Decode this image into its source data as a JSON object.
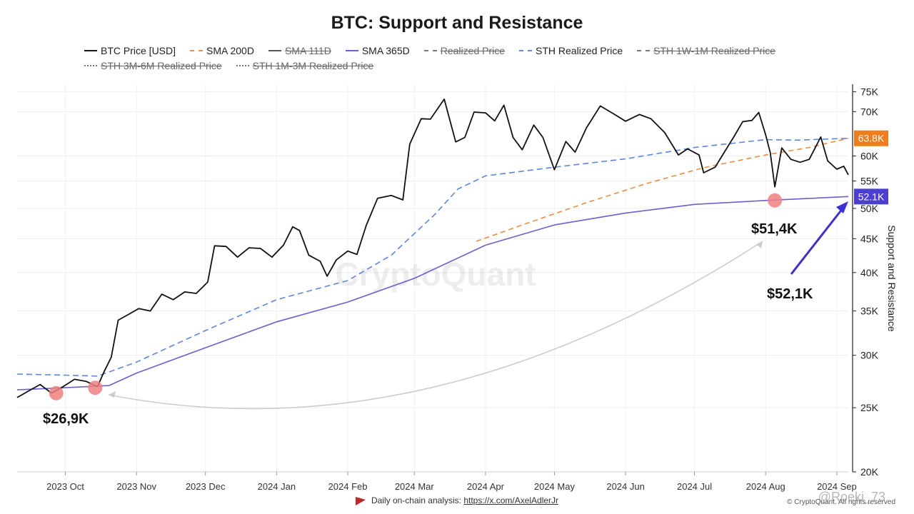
{
  "title": "BTC: Support and Resistance",
  "legend": [
    {
      "label": "BTC Price [USD]",
      "color": "#111111",
      "style": "solid",
      "enabled": true
    },
    {
      "label": "SMA 200D",
      "color": "#f28c3c",
      "style": "dashed",
      "enabled": true
    },
    {
      "label": "SMA 111D",
      "color": "#555555",
      "style": "solid",
      "enabled": false
    },
    {
      "label": "SMA 365D",
      "color": "#6a5fd6",
      "style": "solid",
      "enabled": true
    },
    {
      "label": "Realized Price",
      "color": "#777777",
      "style": "dashdot",
      "enabled": false
    },
    {
      "label": "STH Realized Price",
      "color": "#5b86e5",
      "style": "dashed",
      "enabled": true
    },
    {
      "label": "STH 1W-1M Realized Price",
      "color": "#777777",
      "style": "dashed",
      "enabled": false
    },
    {
      "label": "STH 3M-6M Realized Price",
      "color": "#777777",
      "style": "dotted",
      "enabled": false
    },
    {
      "label": "STH 1M-3M Realized Price",
      "color": "#777777",
      "style": "dotted",
      "enabled": false
    }
  ],
  "chart_data": {
    "type": "line",
    "title": "BTC: Support and Resistance",
    "ylabel": "Support and Resistance",
    "yscale": "log",
    "ylim": [
      20000,
      77000
    ],
    "y_ticks": [
      {
        "value": 75000,
        "label": "75K"
      },
      {
        "value": 70000,
        "label": "70K"
      },
      {
        "value": 60000,
        "label": "60K"
      },
      {
        "value": 55000,
        "label": "55K"
      },
      {
        "value": 50000,
        "label": "50K"
      },
      {
        "value": 45000,
        "label": "45K"
      },
      {
        "value": 40000,
        "label": "40K"
      },
      {
        "value": 35000,
        "label": "35K"
      },
      {
        "value": 30000,
        "label": "30K"
      },
      {
        "value": 25000,
        "label": "25K"
      },
      {
        "value": 20000,
        "label": "20K"
      }
    ],
    "xlim": [
      "2023-09-10",
      "2024-09-06"
    ],
    "x_ticks": [
      {
        "date": "2023-10-01",
        "label": "2023 Oct"
      },
      {
        "date": "2023-11-01",
        "label": "2023 Nov"
      },
      {
        "date": "2023-12-01",
        "label": "2023 Dec"
      },
      {
        "date": "2024-01-01",
        "label": "2024 Jan"
      },
      {
        "date": "2024-02-01",
        "label": "2024 Feb"
      },
      {
        "date": "2024-03-01",
        "label": "2024 Mar"
      },
      {
        "date": "2024-04-01",
        "label": "2024 Apr"
      },
      {
        "date": "2024-05-01",
        "label": "2024 May"
      },
      {
        "date": "2024-06-01",
        "label": "2024 Jun"
      },
      {
        "date": "2024-07-01",
        "label": "2024 Jul"
      },
      {
        "date": "2024-08-01",
        "label": "2024 Aug"
      },
      {
        "date": "2024-09-01",
        "label": "2024 Sep"
      }
    ],
    "series": [
      {
        "name": "BTC Price [USD]",
        "color": "#111111",
        "dash": "",
        "points": [
          [
            "2023-09-10",
            25900
          ],
          [
            "2023-09-15",
            26500
          ],
          [
            "2023-09-20",
            27100
          ],
          [
            "2023-09-25",
            26300
          ],
          [
            "2023-09-30",
            26900
          ],
          [
            "2023-10-05",
            27600
          ],
          [
            "2023-10-10",
            27400
          ],
          [
            "2023-10-15",
            26900
          ],
          [
            "2023-10-18",
            28400
          ],
          [
            "2023-10-21",
            29800
          ],
          [
            "2023-10-24",
            33900
          ],
          [
            "2023-10-28",
            34500
          ],
          [
            "2023-11-02",
            35300
          ],
          [
            "2023-11-07",
            35000
          ],
          [
            "2023-11-12",
            37100
          ],
          [
            "2023-11-17",
            36400
          ],
          [
            "2023-11-22",
            37400
          ],
          [
            "2023-11-27",
            37200
          ],
          [
            "2023-12-02",
            38700
          ],
          [
            "2023-12-05",
            43900
          ],
          [
            "2023-12-10",
            43800
          ],
          [
            "2023-12-15",
            42200
          ],
          [
            "2023-12-20",
            43600
          ],
          [
            "2023-12-25",
            43500
          ],
          [
            "2023-12-30",
            42200
          ],
          [
            "2024-01-04",
            44000
          ],
          [
            "2024-01-08",
            46900
          ],
          [
            "2024-01-11",
            46300
          ],
          [
            "2024-01-15",
            42500
          ],
          [
            "2024-01-20",
            41600
          ],
          [
            "2024-01-23",
            39500
          ],
          [
            "2024-01-27",
            41800
          ],
          [
            "2024-02-01",
            43100
          ],
          [
            "2024-02-05",
            42600
          ],
          [
            "2024-02-09",
            47100
          ],
          [
            "2024-02-14",
            51800
          ],
          [
            "2024-02-20",
            52300
          ],
          [
            "2024-02-25",
            51500
          ],
          [
            "2024-02-28",
            62500
          ],
          [
            "2024-03-04",
            68300
          ],
          [
            "2024-03-08",
            68200
          ],
          [
            "2024-03-14",
            73100
          ],
          [
            "2024-03-19",
            63000
          ],
          [
            "2024-03-23",
            64000
          ],
          [
            "2024-03-27",
            69900
          ],
          [
            "2024-04-01",
            69700
          ],
          [
            "2024-04-05",
            67800
          ],
          [
            "2024-04-09",
            71600
          ],
          [
            "2024-04-13",
            64000
          ],
          [
            "2024-04-17",
            61300
          ],
          [
            "2024-04-22",
            66800
          ],
          [
            "2024-04-26",
            64000
          ],
          [
            "2024-05-01",
            57200
          ],
          [
            "2024-05-06",
            63100
          ],
          [
            "2024-05-10",
            60800
          ],
          [
            "2024-05-15",
            66200
          ],
          [
            "2024-05-21",
            71400
          ],
          [
            "2024-05-27",
            69400
          ],
          [
            "2024-06-01",
            67700
          ],
          [
            "2024-06-07",
            69300
          ],
          [
            "2024-06-12",
            68300
          ],
          [
            "2024-06-18",
            65100
          ],
          [
            "2024-06-24",
            60200
          ],
          [
            "2024-06-28",
            61500
          ],
          [
            "2024-07-03",
            60200
          ],
          [
            "2024-07-05",
            56600
          ],
          [
            "2024-07-10",
            57700
          ],
          [
            "2024-07-14",
            60800
          ],
          [
            "2024-07-18",
            64000
          ],
          [
            "2024-07-22",
            67600
          ],
          [
            "2024-07-26",
            67900
          ],
          [
            "2024-07-29",
            69800
          ],
          [
            "2024-08-01",
            64600
          ],
          [
            "2024-08-03",
            60700
          ],
          [
            "2024-08-05",
            53900
          ],
          [
            "2024-08-08",
            61700
          ],
          [
            "2024-08-12",
            59300
          ],
          [
            "2024-08-16",
            58700
          ],
          [
            "2024-08-20",
            59300
          ],
          [
            "2024-08-25",
            64100
          ],
          [
            "2024-08-28",
            59000
          ],
          [
            "2024-09-01",
            57300
          ],
          [
            "2024-09-04",
            57900
          ],
          [
            "2024-09-06",
            56200
          ]
        ]
      },
      {
        "name": "SMA 200D",
        "color": "#f28c3c",
        "dash": "7,5",
        "points": [
          [
            "2024-03-28",
            44600
          ],
          [
            "2024-04-20",
            47600
          ],
          [
            "2024-05-15",
            51000
          ],
          [
            "2024-06-10",
            54500
          ],
          [
            "2024-07-05",
            57600
          ],
          [
            "2024-08-01",
            60200
          ],
          [
            "2024-08-20",
            61800
          ],
          [
            "2024-09-06",
            63800
          ]
        ]
      },
      {
        "name": "SMA 365D",
        "color": "#6a5fd6",
        "dash": "",
        "points": [
          [
            "2023-09-10",
            26600
          ],
          [
            "2023-10-01",
            26800
          ],
          [
            "2023-10-20",
            27000
          ],
          [
            "2023-11-01",
            28200
          ],
          [
            "2023-12-01",
            30800
          ],
          [
            "2024-01-01",
            33700
          ],
          [
            "2024-02-01",
            36100
          ],
          [
            "2024-03-01",
            39200
          ],
          [
            "2024-04-01",
            44000
          ],
          [
            "2024-05-01",
            47200
          ],
          [
            "2024-06-01",
            49200
          ],
          [
            "2024-07-01",
            50700
          ],
          [
            "2024-08-01",
            51400
          ],
          [
            "2024-09-06",
            52100
          ]
        ]
      },
      {
        "name": "STH Realized Price",
        "color": "#5b86e5",
        "dash": "8,5",
        "points": [
          [
            "2023-09-10",
            28100
          ],
          [
            "2023-10-01",
            28000
          ],
          [
            "2023-10-15",
            27900
          ],
          [
            "2023-11-01",
            29300
          ],
          [
            "2023-12-01",
            32700
          ],
          [
            "2024-01-01",
            36400
          ],
          [
            "2024-02-01",
            38900
          ],
          [
            "2024-02-20",
            42500
          ],
          [
            "2024-03-10",
            49000
          ],
          [
            "2024-03-20",
            53500
          ],
          [
            "2024-04-01",
            56000
          ],
          [
            "2024-05-01",
            57700
          ],
          [
            "2024-06-01",
            59400
          ],
          [
            "2024-07-01",
            61800
          ],
          [
            "2024-08-01",
            63500
          ],
          [
            "2024-08-15",
            63400
          ],
          [
            "2024-09-06",
            63800
          ]
        ]
      }
    ],
    "annotations": [
      {
        "text": "$26,9K",
        "date": "2023-10-01",
        "value": 26900
      },
      {
        "text": "$51,4K",
        "date": "2024-08-05",
        "value": 51400
      },
      {
        "text": "$52,1K"
      }
    ],
    "right_labels": [
      {
        "text": "63.8K",
        "value": 63800,
        "color": "#f07d1a"
      },
      {
        "text": "52.1K",
        "value": 52100,
        "color": "#4a3fd0"
      }
    ],
    "watermark": "CryptoQuant",
    "grid": true
  },
  "footer": {
    "prefix": "Daily on-chain analysis:",
    "link": "https://x.com/AxelAdlerJr"
  },
  "copyright": "© CryptoQuant. All rights reserved",
  "handle": "@Roeki_73"
}
